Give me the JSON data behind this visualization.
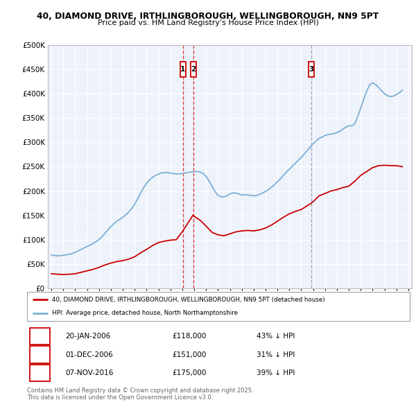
{
  "title_line1": "40, DIAMOND DRIVE, IRTHLINGBOROUGH, WELLINGBOROUGH, NN9 5PT",
  "title_line2": "Price paid vs. HM Land Registry's House Price Index (HPI)",
  "ylim": [
    0,
    500000
  ],
  "yticks": [
    0,
    50000,
    100000,
    150000,
    200000,
    250000,
    300000,
    350000,
    400000,
    450000,
    500000
  ],
  "ytick_labels": [
    "£0",
    "£50K",
    "£100K",
    "£150K",
    "£200K",
    "£250K",
    "£300K",
    "£350K",
    "£400K",
    "£450K",
    "£500K"
  ],
  "background_color": "#ffffff",
  "plot_bg_color": "#eef2fb",
  "grid_color": "#ffffff",
  "line_color_red": "#cc0000",
  "line_color_blue": "#7bafd4",
  "marker1_x": 2006.05,
  "marker1_date": "20-JAN-2006",
  "marker1_price": "£118,000",
  "marker1_pct": "43% ↓ HPI",
  "marker2_x": 2006.92,
  "marker2_date": "01-DEC-2006",
  "marker2_price": "£151,000",
  "marker2_pct": "31% ↓ HPI",
  "marker3_x": 2016.85,
  "marker3_date": "07-NOV-2016",
  "marker3_price": "£175,000",
  "marker3_pct": "39% ↓ HPI",
  "legend_label_red": "40, DIAMOND DRIVE, IRTHLINGBOROUGH, WELLINGBOROUGH, NN9 5PT (detached house)",
  "legend_label_blue": "HPI: Average price, detached house, North Northamptonshire",
  "footer_line1": "Contains HM Land Registry data © Crown copyright and database right 2025.",
  "footer_line2": "This data is licensed under the Open Government Licence v3.0.",
  "hpi_years": [
    1995.0,
    1995.25,
    1995.5,
    1995.75,
    1996.0,
    1996.25,
    1996.5,
    1996.75,
    1997.0,
    1997.25,
    1997.5,
    1997.75,
    1998.0,
    1998.25,
    1998.5,
    1998.75,
    1999.0,
    1999.25,
    1999.5,
    1999.75,
    2000.0,
    2000.25,
    2000.5,
    2000.75,
    2001.0,
    2001.25,
    2001.5,
    2001.75,
    2002.0,
    2002.25,
    2002.5,
    2002.75,
    2003.0,
    2003.25,
    2003.5,
    2003.75,
    2004.0,
    2004.25,
    2004.5,
    2004.75,
    2005.0,
    2005.25,
    2005.5,
    2005.75,
    2006.0,
    2006.25,
    2006.5,
    2006.75,
    2007.0,
    2007.25,
    2007.5,
    2007.75,
    2008.0,
    2008.25,
    2008.5,
    2008.75,
    2009.0,
    2009.25,
    2009.5,
    2009.75,
    2010.0,
    2010.25,
    2010.5,
    2010.75,
    2011.0,
    2011.25,
    2011.5,
    2011.75,
    2012.0,
    2012.25,
    2012.5,
    2012.75,
    2013.0,
    2013.25,
    2013.5,
    2013.75,
    2014.0,
    2014.25,
    2014.5,
    2014.75,
    2015.0,
    2015.25,
    2015.5,
    2015.75,
    2016.0,
    2016.25,
    2016.5,
    2016.75,
    2017.0,
    2017.25,
    2017.5,
    2017.75,
    2018.0,
    2018.25,
    2018.5,
    2018.75,
    2019.0,
    2019.25,
    2019.5,
    2019.75,
    2020.0,
    2020.25,
    2020.5,
    2020.75,
    2021.0,
    2021.25,
    2021.5,
    2021.75,
    2022.0,
    2022.25,
    2022.5,
    2022.75,
    2023.0,
    2023.25,
    2023.5,
    2023.75,
    2024.0,
    2024.25,
    2024.5
  ],
  "hpi_values": [
    68000,
    67500,
    67000,
    67000,
    68000,
    69000,
    70000,
    71500,
    74000,
    77000,
    80000,
    83000,
    86000,
    89000,
    92000,
    96000,
    100000,
    106000,
    113000,
    120000,
    127000,
    133000,
    138000,
    142000,
    146000,
    151000,
    157000,
    164000,
    173000,
    184000,
    196000,
    207000,
    216000,
    223000,
    228000,
    232000,
    235000,
    237000,
    238000,
    238000,
    237000,
    236000,
    235000,
    235000,
    236000,
    237000,
    238000,
    239000,
    240000,
    240000,
    239000,
    236000,
    230000,
    221000,
    210000,
    199000,
    191000,
    188000,
    188000,
    190000,
    194000,
    196000,
    196000,
    194000,
    192000,
    192000,
    192000,
    191000,
    190000,
    191000,
    193000,
    196000,
    199000,
    203000,
    208000,
    213000,
    219000,
    225000,
    232000,
    239000,
    245000,
    251000,
    257000,
    263000,
    269000,
    276000,
    283000,
    290000,
    297000,
    303000,
    308000,
    311000,
    314000,
    316000,
    317000,
    318000,
    320000,
    323000,
    327000,
    331000,
    334000,
    334000,
    338000,
    353000,
    370000,
    388000,
    405000,
    418000,
    422000,
    419000,
    413000,
    406000,
    400000,
    396000,
    394000,
    395000,
    398000,
    402000,
    407000
  ],
  "red_years": [
    1995.0,
    1995.5,
    1996.0,
    1996.5,
    1997.0,
    1997.5,
    1998.0,
    1998.5,
    1999.0,
    1999.5,
    2000.0,
    2000.5,
    2001.0,
    2001.5,
    2002.0,
    2002.5,
    2003.0,
    2003.5,
    2004.0,
    2004.5,
    2005.0,
    2005.5,
    2006.05,
    2006.92,
    2007.0,
    2007.5,
    2008.0,
    2008.5,
    2009.0,
    2009.5,
    2010.0,
    2010.5,
    2011.0,
    2011.5,
    2012.0,
    2012.5,
    2013.0,
    2013.5,
    2014.0,
    2014.5,
    2015.0,
    2015.5,
    2016.0,
    2016.85,
    2017.0,
    2017.5,
    2018.0,
    2018.5,
    2019.0,
    2019.5,
    2020.0,
    2020.5,
    2021.0,
    2021.5,
    2022.0,
    2022.5,
    2023.0,
    2023.5,
    2024.0,
    2024.5
  ],
  "red_values": [
    30000,
    29000,
    28500,
    29000,
    30000,
    33000,
    36000,
    39000,
    43000,
    48000,
    52000,
    55000,
    57000,
    60000,
    65000,
    73000,
    80000,
    88000,
    94000,
    97000,
    99000,
    100000,
    118000,
    151000,
    148000,
    140000,
    128000,
    115000,
    110000,
    108000,
    112000,
    116000,
    118000,
    119000,
    118000,
    120000,
    124000,
    130000,
    138000,
    146000,
    153000,
    158000,
    162000,
    175000,
    178000,
    190000,
    195000,
    200000,
    203000,
    207000,
    210000,
    220000,
    232000,
    240000,
    248000,
    252000,
    253000,
    252000,
    252000,
    250000
  ]
}
